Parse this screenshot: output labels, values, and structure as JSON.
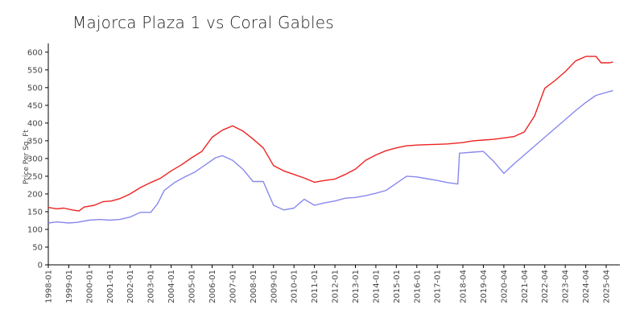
{
  "chart_data": {
    "type": "line",
    "title": "Majorca Plaza 1 vs Coral Gables",
    "xlabel": "",
    "ylabel": "Price Per Sq. Ft",
    "ylim": [
      0,
      620
    ],
    "yticks": [
      0,
      50,
      100,
      150,
      200,
      250,
      300,
      350,
      400,
      450,
      500,
      550,
      600
    ],
    "x_range": [
      "1998-01",
      "2025-12"
    ],
    "grid": false,
    "legend": "none",
    "xticks": [
      "1998-01",
      "1999-01",
      "2000-01",
      "2001-01",
      "2002-01",
      "2003-01",
      "2004-01",
      "2005-01",
      "2006-01",
      "2007-01",
      "2008-01",
      "2009-01",
      "2010-01",
      "2011-01",
      "2012-01",
      "2013-01",
      "2014-01",
      "2015-01",
      "2016-01",
      "2017-01",
      "2018-04",
      "2019-04",
      "2020-04",
      "2021-04",
      "2022-04",
      "2023-04",
      "2024-04",
      "2025-04"
    ],
    "series": [
      {
        "color": "#ee2222",
        "points": [
          [
            "1998-01",
            162
          ],
          [
            "1998-06",
            158
          ],
          [
            "1998-10",
            160
          ],
          [
            "1999-03",
            155
          ],
          [
            "1999-07",
            152
          ],
          [
            "1999-10",
            163
          ],
          [
            "2000-04",
            168
          ],
          [
            "2000-09",
            178
          ],
          [
            "2001-02",
            180
          ],
          [
            "2001-07",
            187
          ],
          [
            "2002-01",
            200
          ],
          [
            "2002-07",
            218
          ],
          [
            "2003-01",
            232
          ],
          [
            "2003-07",
            245
          ],
          [
            "2004-01",
            265
          ],
          [
            "2004-07",
            282
          ],
          [
            "2005-01",
            302
          ],
          [
            "2005-07",
            320
          ],
          [
            "2006-01",
            360
          ],
          [
            "2006-07",
            380
          ],
          [
            "2007-01",
            392
          ],
          [
            "2007-07",
            378
          ],
          [
            "2008-01",
            355
          ],
          [
            "2008-07",
            330
          ],
          [
            "2009-01",
            280
          ],
          [
            "2009-07",
            265
          ],
          [
            "2010-01",
            255
          ],
          [
            "2010-07",
            245
          ],
          [
            "2011-01",
            233
          ],
          [
            "2011-07",
            238
          ],
          [
            "2012-01",
            242
          ],
          [
            "2012-07",
            255
          ],
          [
            "2013-01",
            270
          ],
          [
            "2013-07",
            295
          ],
          [
            "2014-01",
            310
          ],
          [
            "2014-07",
            322
          ],
          [
            "2015-01",
            330
          ],
          [
            "2015-07",
            336
          ],
          [
            "2016-01",
            338
          ],
          [
            "2016-07",
            339
          ],
          [
            "2017-01",
            340
          ],
          [
            "2017-07",
            341
          ],
          [
            "2018-04",
            345
          ],
          [
            "2018-10",
            350
          ],
          [
            "2019-04",
            352
          ],
          [
            "2019-10",
            354
          ],
          [
            "2020-04",
            358
          ],
          [
            "2020-10",
            362
          ],
          [
            "2021-04",
            375
          ],
          [
            "2021-10",
            420
          ],
          [
            "2022-04",
            498
          ],
          [
            "2022-10",
            520
          ],
          [
            "2023-04",
            545
          ],
          [
            "2023-10",
            575
          ],
          [
            "2024-04",
            588
          ],
          [
            "2024-10",
            588
          ],
          [
            "2025-01",
            570
          ],
          [
            "2025-06",
            570
          ],
          [
            "2025-08",
            572
          ]
        ]
      },
      {
        "color": "#8888ee",
        "points": [
          [
            "1998-01",
            118
          ],
          [
            "1998-06",
            121
          ],
          [
            "1999-01",
            118
          ],
          [
            "1999-06",
            120
          ],
          [
            "2000-01",
            126
          ],
          [
            "2000-07",
            128
          ],
          [
            "2001-01",
            126
          ],
          [
            "2001-07",
            128
          ],
          [
            "2002-01",
            135
          ],
          [
            "2002-07",
            148
          ],
          [
            "2003-01",
            148
          ],
          [
            "2003-05",
            172
          ],
          [
            "2003-09",
            210
          ],
          [
            "2004-03",
            232
          ],
          [
            "2004-09",
            248
          ],
          [
            "2005-03",
            262
          ],
          [
            "2005-09",
            282
          ],
          [
            "2006-03",
            302
          ],
          [
            "2006-07",
            308
          ],
          [
            "2007-01",
            295
          ],
          [
            "2007-07",
            270
          ],
          [
            "2008-01",
            235
          ],
          [
            "2008-07",
            235
          ],
          [
            "2009-01",
            168
          ],
          [
            "2009-07",
            155
          ],
          [
            "2010-01",
            160
          ],
          [
            "2010-07",
            185
          ],
          [
            "2011-01",
            168
          ],
          [
            "2011-07",
            175
          ],
          [
            "2012-01",
            180
          ],
          [
            "2012-07",
            188
          ],
          [
            "2013-01",
            190
          ],
          [
            "2013-07",
            195
          ],
          [
            "2014-01",
            202
          ],
          [
            "2014-07",
            210
          ],
          [
            "2015-01",
            230
          ],
          [
            "2015-07",
            250
          ],
          [
            "2016-01",
            248
          ],
          [
            "2016-07",
            243
          ],
          [
            "2017-01",
            238
          ],
          [
            "2017-07",
            232
          ],
          [
            "2018-01",
            228
          ],
          [
            "2018-02",
            315
          ],
          [
            "2018-10",
            318
          ],
          [
            "2019-04",
            320
          ],
          [
            "2019-10",
            292
          ],
          [
            "2020-04",
            258
          ],
          [
            "2020-10",
            285
          ],
          [
            "2021-04",
            310
          ],
          [
            "2021-10",
            335
          ],
          [
            "2022-04",
            360
          ],
          [
            "2022-10",
            385
          ],
          [
            "2023-04",
            410
          ],
          [
            "2023-10",
            435
          ],
          [
            "2024-04",
            458
          ],
          [
            "2024-10",
            478
          ],
          [
            "2025-08",
            492
          ]
        ]
      }
    ]
  }
}
